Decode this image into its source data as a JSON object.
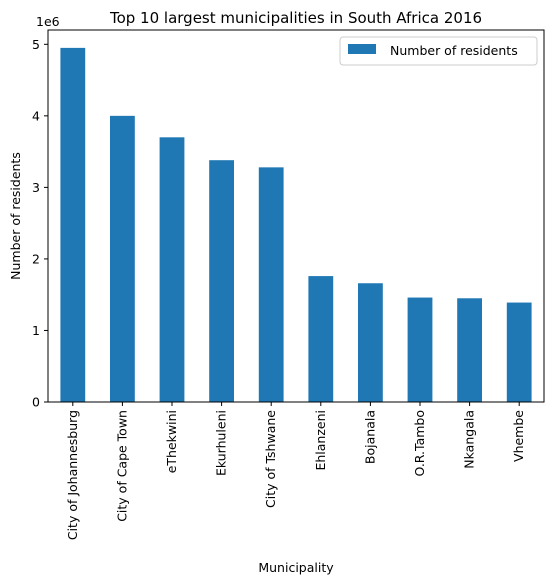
{
  "chart_data": {
    "type": "bar",
    "title": "Top 10 largest municipalities in South Africa 2016",
    "xlabel": "Municipality",
    "ylabel": "Number of residents",
    "y_offset_label": "1e6",
    "ylim": [
      0,
      5200000
    ],
    "yticks": [
      0,
      1,
      2,
      3,
      4,
      5
    ],
    "grid": false,
    "legend_position": "top-right",
    "categories": [
      "City of Johannesburg",
      "City of Cape Town",
      "eThekwini",
      "Ekurhuleni",
      "City of Tshwane",
      "Ehlanzeni",
      "Bojanala",
      "O.R.Tambo",
      "Nkangala",
      "Vhembe"
    ],
    "series": [
      {
        "name": "Number of residents",
        "color": "#1f77b4",
        "values": [
          4950000,
          4000000,
          3700000,
          3380000,
          3280000,
          1760000,
          1660000,
          1460000,
          1450000,
          1390000
        ]
      }
    ]
  }
}
